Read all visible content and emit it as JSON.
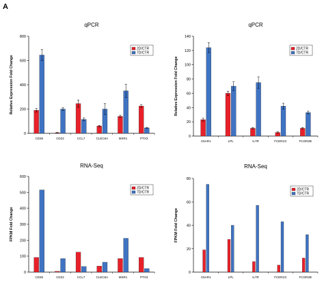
{
  "figure": {
    "panel_letter": "A"
  },
  "colors": {
    "2D/CTR": "#e8202a",
    "7D/CTR": "#3f73c3"
  },
  "chart_data": [
    {
      "type": "bar",
      "title": "qPCR",
      "ylabel": "Relative Expression Fold Change",
      "xlabel": "",
      "ylim": [
        0,
        800
      ],
      "yticks": [
        0,
        200,
        400,
        600,
        800
      ],
      "categories": [
        "CD36",
        "CD22",
        "CCL7",
        "CLEC6A",
        "MSR1",
        "PTX3"
      ],
      "series": [
        {
          "name": "2D/CTR",
          "values": [
            190,
            5,
            245,
            60,
            140,
            225
          ],
          "errors": [
            15,
            3,
            30,
            6,
            10,
            12
          ]
        },
        {
          "name": "7D/CTR",
          "values": [
            645,
            200,
            115,
            200,
            350,
            45
          ],
          "errors": [
            45,
            12,
            12,
            45,
            55,
            5
          ]
        }
      ],
      "legend": "top-right",
      "grid": false
    },
    {
      "type": "bar",
      "title": "qPCR",
      "ylabel": "Relative Expression Fold Change",
      "xlabel": "",
      "ylim": [
        0,
        140
      ],
      "yticks": [
        0,
        20,
        40,
        60,
        80,
        100,
        120,
        140
      ],
      "categories": [
        "C5AR1",
        "LPL",
        "IL7R",
        "FCER1G",
        "FCGR2B"
      ],
      "series": [
        {
          "name": "2D/CTR",
          "values": [
            23,
            60,
            11,
            5,
            11
          ],
          "errors": [
            2,
            3,
            1,
            1,
            1
          ]
        },
        {
          "name": "7D/CTR",
          "values": [
            124,
            70,
            75,
            42,
            33
          ],
          "errors": [
            7,
            6,
            8,
            4,
            2
          ]
        }
      ],
      "legend": "top-right",
      "grid": false
    },
    {
      "type": "bar",
      "title": "RNA-Seq",
      "ylabel": "FPKM Fold Change",
      "xlabel": "",
      "ylim": [
        0,
        600
      ],
      "yticks": [
        0,
        100,
        200,
        300,
        400,
        500,
        600
      ],
      "categories": [
        "CD36",
        "CD22",
        "CCL7",
        "CLEC6A",
        "MSR1",
        "PTX3"
      ],
      "series": [
        {
          "name": "2D/CTR",
          "values": [
            92,
            5,
            125,
            38,
            85,
            92
          ]
        },
        {
          "name": "7D/CTR",
          "values": [
            515,
            85,
            35,
            62,
            212,
            22
          ]
        }
      ],
      "legend": "top-right",
      "grid": false
    },
    {
      "type": "bar",
      "title": "RNA-Seq",
      "ylabel": "FPKM Fold Change",
      "xlabel": "",
      "ylim": [
        0,
        80
      ],
      "yticks": [
        0,
        20,
        40,
        60,
        80
      ],
      "categories": [
        "C5AR1",
        "LPL",
        "IL7R",
        "FCER1G",
        "FCGR2B"
      ],
      "series": [
        {
          "name": "2D/CTR",
          "values": [
            19,
            28,
            9,
            6,
            12
          ]
        },
        {
          "name": "7D/CTR",
          "values": [
            75,
            40,
            57,
            43,
            32
          ]
        }
      ],
      "legend": "top-right",
      "grid": false
    }
  ]
}
